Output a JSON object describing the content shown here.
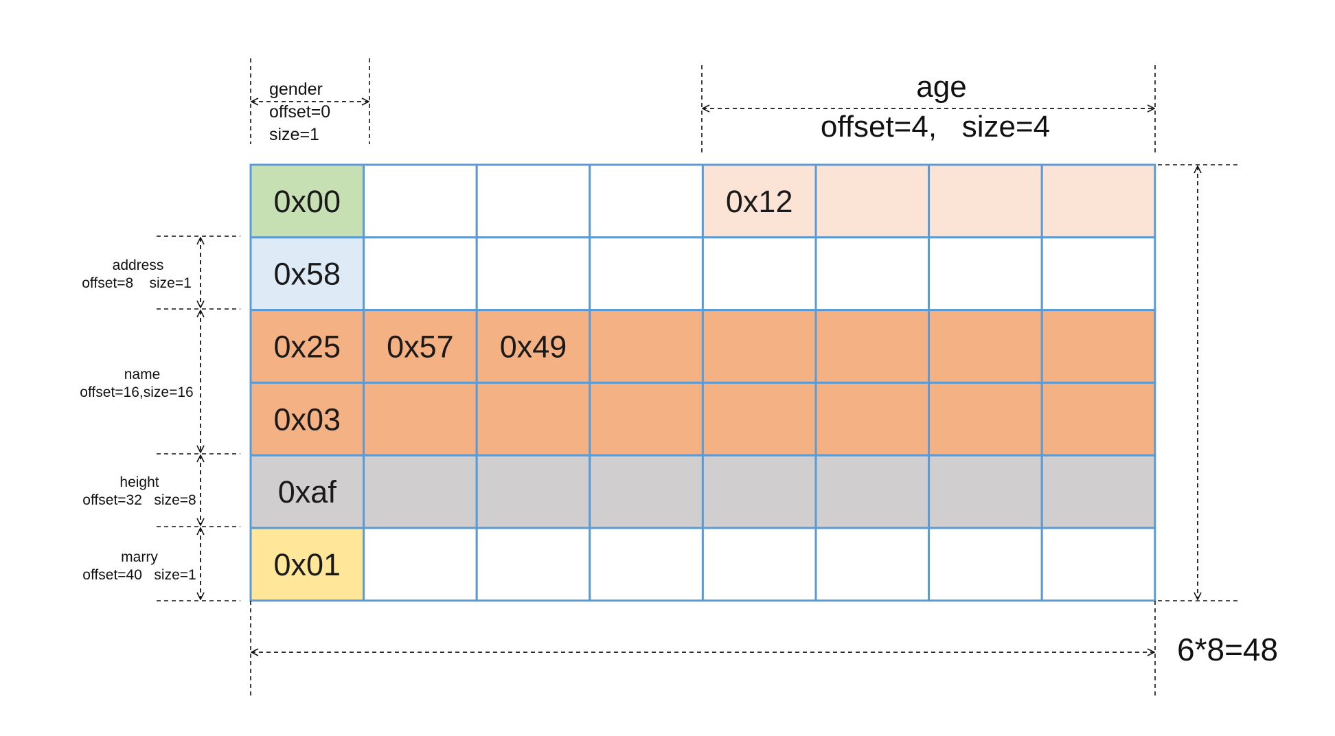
{
  "grid": {
    "columns": 8,
    "rows": [
      {
        "field": "gender/age",
        "cells": [
          {
            "text": "0x00",
            "fill": "#c6e0b4"
          },
          {
            "text": "",
            "fill": "#ffffff"
          },
          {
            "text": "",
            "fill": "#ffffff"
          },
          {
            "text": "",
            "fill": "#ffffff"
          },
          {
            "text": "0x12",
            "fill": "#fbe4d5"
          },
          {
            "text": "",
            "fill": "#fbe4d5"
          },
          {
            "text": "",
            "fill": "#fbe4d5"
          },
          {
            "text": "",
            "fill": "#fbe4d5"
          }
        ]
      },
      {
        "field": "address",
        "cells": [
          {
            "text": "0x58",
            "fill": "#deebf7"
          },
          {
            "text": "",
            "fill": "#ffffff"
          },
          {
            "text": "",
            "fill": "#ffffff"
          },
          {
            "text": "",
            "fill": "#ffffff"
          },
          {
            "text": "",
            "fill": "#ffffff"
          },
          {
            "text": "",
            "fill": "#ffffff"
          },
          {
            "text": "",
            "fill": "#ffffff"
          },
          {
            "text": "",
            "fill": "#ffffff"
          }
        ]
      },
      {
        "field": "name",
        "cells": [
          {
            "text": "0x25",
            "fill": "#f4b183"
          },
          {
            "text": "0x57",
            "fill": "#f4b183"
          },
          {
            "text": "0x49",
            "fill": "#f4b183"
          },
          {
            "text": "",
            "fill": "#f4b183"
          },
          {
            "text": "",
            "fill": "#f4b183"
          },
          {
            "text": "",
            "fill": "#f4b183"
          },
          {
            "text": "",
            "fill": "#f4b183"
          },
          {
            "text": "",
            "fill": "#f4b183"
          }
        ]
      },
      {
        "field": "name",
        "cells": [
          {
            "text": "0x03",
            "fill": "#f4b183"
          },
          {
            "text": "",
            "fill": "#f4b183"
          },
          {
            "text": "",
            "fill": "#f4b183"
          },
          {
            "text": "",
            "fill": "#f4b183"
          },
          {
            "text": "",
            "fill": "#f4b183"
          },
          {
            "text": "",
            "fill": "#f4b183"
          },
          {
            "text": "",
            "fill": "#f4b183"
          },
          {
            "text": "",
            "fill": "#f4b183"
          }
        ]
      },
      {
        "field": "height",
        "cells": [
          {
            "text": "0xaf",
            "fill": "#d0cece"
          },
          {
            "text": "",
            "fill": "#d0cece"
          },
          {
            "text": "",
            "fill": "#d0cece"
          },
          {
            "text": "",
            "fill": "#d0cece"
          },
          {
            "text": "",
            "fill": "#d0cece"
          },
          {
            "text": "",
            "fill": "#d0cece"
          },
          {
            "text": "",
            "fill": "#d0cece"
          },
          {
            "text": "",
            "fill": "#d0cece"
          }
        ]
      },
      {
        "field": "marry",
        "cells": [
          {
            "text": "0x01",
            "fill": "#ffe699"
          },
          {
            "text": "",
            "fill": "#ffffff"
          },
          {
            "text": "",
            "fill": "#ffffff"
          },
          {
            "text": "",
            "fill": "#ffffff"
          },
          {
            "text": "",
            "fill": "#ffffff"
          },
          {
            "text": "",
            "fill": "#ffffff"
          },
          {
            "text": "",
            "fill": "#ffffff"
          },
          {
            "text": "",
            "fill": "#ffffff"
          }
        ]
      }
    ],
    "border_color": "#5b9bd5"
  },
  "labels": {
    "gender": [
      "gender",
      "offset=0",
      "size=1"
    ],
    "age_name": "age",
    "age_detail": "offset=4,   size=4",
    "address": [
      "address",
      "offset=8    size=1"
    ],
    "name": [
      "name",
      "offset=16,size=16"
    ],
    "height": [
      "height",
      "offset=32   size=8"
    ],
    "marry": [
      "marry",
      "offset=40   size=1"
    ],
    "total": "6*8=48",
    "total_color": "#e02020"
  }
}
